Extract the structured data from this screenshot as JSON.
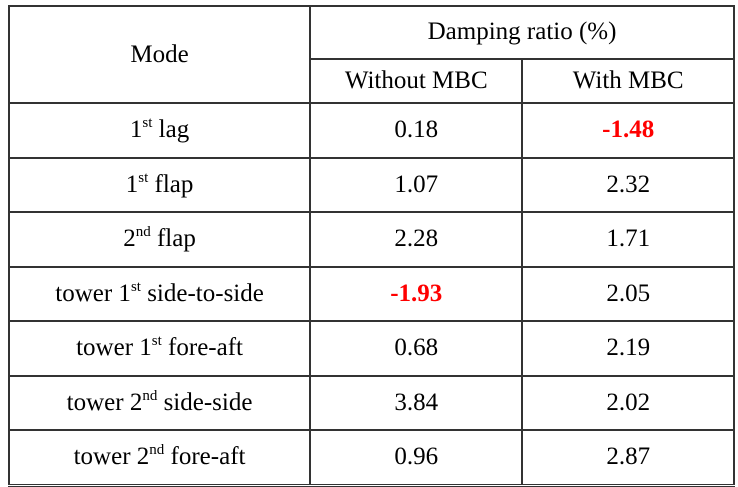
{
  "table": {
    "header": {
      "mode": "Mode",
      "group": "Damping ratio (%)",
      "without_mbc": "Without MBC",
      "with_mbc": "With MBC"
    },
    "highlight_color": "#ff0000",
    "rows": [
      {
        "mode_pre": "1",
        "mode_sup": "st",
        "mode_post": " lag",
        "without": "0.18",
        "with": "-1.48",
        "highlight": "with"
      },
      {
        "mode_pre": "1",
        "mode_sup": "st",
        "mode_post": " flap",
        "without": "1.07",
        "with": "2.32",
        "highlight": ""
      },
      {
        "mode_pre": "2",
        "mode_sup": "nd",
        "mode_post": " flap",
        "without": "2.28",
        "with": "1.71",
        "highlight": ""
      },
      {
        "mode_pre": "tower 1",
        "mode_sup": "st",
        "mode_post": " side-to-side",
        "without": "-1.93",
        "with": "2.05",
        "highlight": "without"
      },
      {
        "mode_pre": "tower 1",
        "mode_sup": "st",
        "mode_post": " fore-aft",
        "without": "0.68",
        "with": "2.19",
        "highlight": ""
      },
      {
        "mode_pre": "tower 2",
        "mode_sup": "nd",
        "mode_post": " side-side",
        "without": "3.84",
        "with": "2.02",
        "highlight": ""
      },
      {
        "mode_pre": "tower 2",
        "mode_sup": "nd",
        "mode_post": " fore-aft",
        "without": "0.96",
        "with": "2.87",
        "highlight": ""
      }
    ]
  }
}
